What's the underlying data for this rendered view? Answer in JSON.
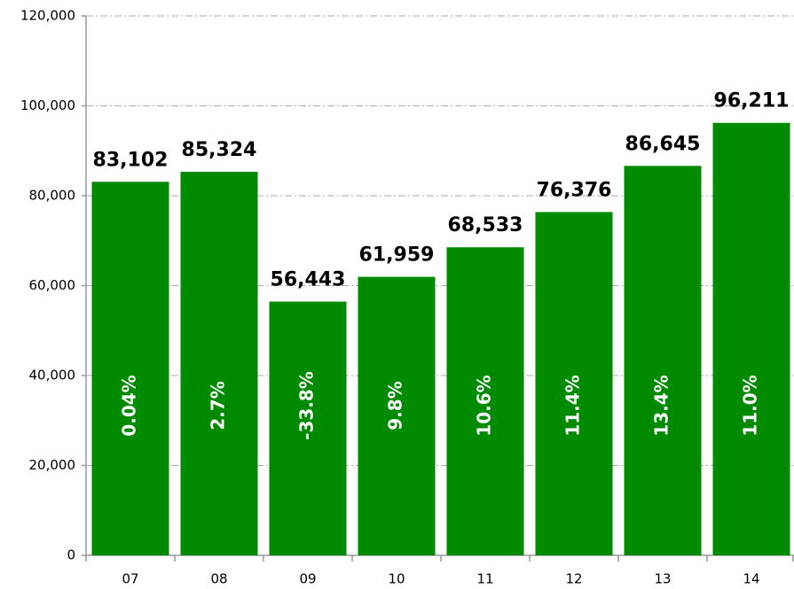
{
  "chart_data": {
    "type": "bar",
    "categories": [
      "07",
      "08",
      "09",
      "10",
      "11",
      "12",
      "13",
      "14"
    ],
    "values": [
      83102,
      85324,
      56443,
      61959,
      68533,
      76376,
      86645,
      96211
    ],
    "value_labels": [
      "83,102",
      "85,324",
      "56,443",
      "61,959",
      "68,533",
      "76,376",
      "86,645",
      "96,211"
    ],
    "growth_labels": [
      "0.04%",
      "2.7%",
      "-33.8%",
      "9.8%",
      "10.6%",
      "11.4%",
      "13.4%",
      "11.0%"
    ],
    "color": "#008a00",
    "ylim": [
      0,
      120000
    ],
    "yticks": [
      0,
      {
        "value": 20000,
        "label": "20,000"
      },
      {
        "value": 40000,
        "label": "40,000"
      },
      {
        "value": 60000,
        "label": "60,000"
      },
      {
        "value": 80000,
        "label": "80,000"
      },
      {
        "value": 100000,
        "label": "100,000"
      },
      {
        "value": 120000,
        "label": "120,000"
      }
    ],
    "grid": true
  }
}
